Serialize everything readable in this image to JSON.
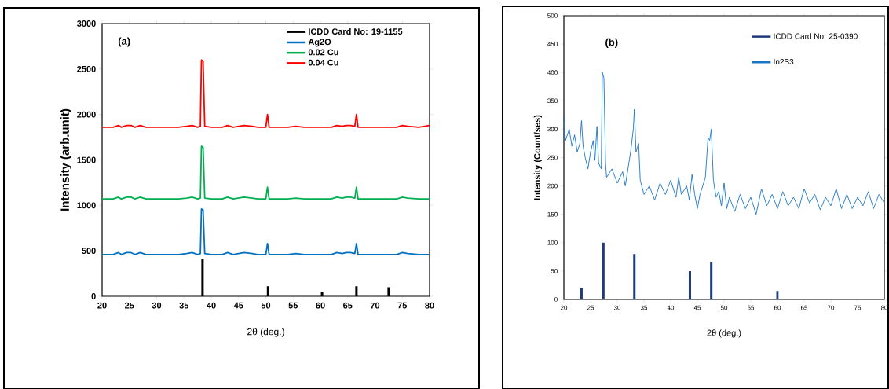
{
  "chart_data": [
    {
      "type": "line",
      "xlabel": "2θ (deg.)",
      "ylabel": "Intensity (arb.unit)",
      "xlim": [
        20,
        80
      ],
      "ylim": [
        0,
        3000
      ],
      "xticks": [
        20,
        25,
        30,
        35,
        40,
        45,
        50,
        55,
        60,
        65,
        70,
        75,
        80
      ],
      "yticks": [
        0,
        500,
        1000,
        1500,
        2000,
        2500,
        3000
      ],
      "legend": "top right",
      "annotations": [
        "(a)"
      ],
      "series": [
        {
          "name": "ICDD Card No: 19-1155",
          "type": "bar",
          "color": "#000000",
          "x": [
            38.4,
            50.4,
            60.3,
            66.6,
            72.5
          ],
          "values": [
            410,
            110,
            50,
            110,
            100
          ]
        },
        {
          "name": "Ag2O",
          "color": "#0070c0",
          "x": [
            20,
            21,
            22,
            23,
            23.5,
            24.5,
            25.3,
            26,
            27,
            28,
            30,
            32,
            34,
            35.5,
            36.5,
            37.5,
            38.0,
            38.2,
            38.5,
            38.8,
            40,
            42,
            43,
            44,
            46,
            47.5,
            48.5,
            50.0,
            50.3,
            50.6,
            52,
            54,
            55.5,
            57,
            60,
            62,
            63,
            64,
            64.7,
            65.5,
            66.3,
            66.6,
            66.9,
            68,
            70,
            72,
            74,
            75,
            76,
            78,
            80
          ],
          "values": [
            460,
            460,
            460,
            480,
            460,
            480,
            480,
            460,
            480,
            460,
            460,
            460,
            460,
            470,
            480,
            460,
            470,
            960,
            950,
            470,
            460,
            460,
            480,
            460,
            480,
            470,
            460,
            460,
            580,
            460,
            460,
            460,
            470,
            460,
            460,
            460,
            480,
            470,
            480,
            480,
            470,
            580,
            460,
            460,
            460,
            460,
            460,
            480,
            470,
            460,
            460
          ]
        },
        {
          "name": "0.02 Cu",
          "color": "#00b050",
          "x": [
            20,
            21,
            22,
            23,
            23.5,
            24.5,
            25.3,
            26,
            27,
            28,
            30,
            32,
            34,
            35.5,
            36.5,
            37.5,
            38.0,
            38.2,
            38.5,
            38.8,
            40,
            42,
            43,
            44,
            46,
            47.5,
            48.5,
            50.0,
            50.3,
            50.6,
            52,
            54,
            55.5,
            57,
            60,
            62,
            63,
            64,
            64.7,
            65.5,
            66.3,
            66.6,
            66.9,
            68,
            70,
            72,
            74,
            75,
            76,
            78,
            80
          ],
          "values": [
            1070,
            1070,
            1070,
            1090,
            1070,
            1090,
            1090,
            1070,
            1090,
            1070,
            1070,
            1070,
            1070,
            1080,
            1090,
            1070,
            1080,
            1650,
            1640,
            1080,
            1070,
            1070,
            1090,
            1070,
            1090,
            1080,
            1070,
            1070,
            1200,
            1070,
            1070,
            1070,
            1080,
            1070,
            1070,
            1070,
            1090,
            1080,
            1090,
            1090,
            1080,
            1200,
            1070,
            1070,
            1070,
            1070,
            1070,
            1090,
            1080,
            1070,
            1070
          ]
        },
        {
          "name": "0.04 Cu",
          "color": "#ff0000",
          "x": [
            20,
            21,
            22,
            23,
            23.5,
            24.5,
            25.3,
            26,
            27,
            28,
            30,
            32,
            34,
            35.5,
            36.5,
            37.5,
            38.0,
            38.2,
            38.5,
            38.8,
            40,
            42,
            43,
            44,
            46,
            47.5,
            48.5,
            50.0,
            50.3,
            50.6,
            52,
            54,
            55.5,
            57,
            60,
            62,
            63,
            64,
            64.7,
            65.5,
            66.3,
            66.6,
            66.9,
            68,
            70,
            72,
            74,
            75,
            76,
            78,
            80
          ],
          "values": [
            1860,
            1860,
            1860,
            1880,
            1860,
            1880,
            1880,
            1860,
            1880,
            1860,
            1860,
            1860,
            1860,
            1870,
            1880,
            1860,
            1870,
            2600,
            2590,
            1870,
            1860,
            1860,
            1880,
            1860,
            1880,
            1870,
            1860,
            1860,
            2000,
            1860,
            1860,
            1860,
            1870,
            1860,
            1860,
            1860,
            1880,
            1870,
            1880,
            1880,
            1870,
            2000,
            1860,
            1860,
            1860,
            1860,
            1860,
            1880,
            1870,
            1860,
            1880
          ]
        }
      ]
    },
    {
      "type": "line",
      "xlabel": "2θ (deg.)",
      "ylabel": "Intensity (Count/ses)",
      "xlim": [
        20,
        80
      ],
      "ylim": [
        0,
        500
      ],
      "xticks": [
        20,
        25,
        30,
        35,
        40,
        45,
        50,
        55,
        60,
        65,
        70,
        75,
        80
      ],
      "yticks": [
        0,
        50,
        100,
        150,
        200,
        250,
        300,
        350,
        400,
        450,
        500
      ],
      "legend": "top right",
      "annotations": [
        "(b)"
      ],
      "series": [
        {
          "name": "ICDD Card No: 25-0390",
          "type": "bar",
          "color": "#1f3a7a",
          "x": [
            23.3,
            27.4,
            33.2,
            43.6,
            47.6,
            60.0
          ],
          "values": [
            20,
            100,
            80,
            50,
            65,
            15
          ]
        },
        {
          "name": "In2S3",
          "color": "#1a75c4",
          "x": [
            20,
            20.3,
            21,
            21.5,
            22,
            22.5,
            23,
            23.3,
            23.6,
            24,
            24.5,
            25,
            25.5,
            25.8,
            26.2,
            26.5,
            27,
            27.2,
            27.5,
            27.8,
            28,
            29,
            30,
            31,
            31.5,
            32,
            32.5,
            33,
            33.2,
            33.5,
            34,
            34.3,
            35,
            36,
            37,
            38,
            39,
            40,
            41,
            41.5,
            42,
            43,
            43.5,
            44,
            44.5,
            45,
            45.5,
            46,
            46.5,
            47,
            47.3,
            47.6,
            48,
            48.5,
            49,
            49.5,
            50,
            50.5,
            51,
            52,
            53,
            54,
            55,
            56,
            57,
            58,
            59,
            60,
            61,
            62,
            63,
            64,
            65,
            66,
            67,
            68,
            69,
            70,
            71,
            72,
            73,
            74,
            75,
            76,
            77,
            78,
            79,
            80
          ],
          "values": [
            325,
            280,
            300,
            270,
            290,
            260,
            275,
            315,
            270,
            250,
            230,
            260,
            280,
            245,
            305,
            240,
            230,
            400,
            390,
            240,
            215,
            230,
            205,
            225,
            200,
            230,
            260,
            300,
            335,
            260,
            275,
            210,
            185,
            200,
            175,
            205,
            185,
            210,
            180,
            215,
            185,
            200,
            175,
            220,
            185,
            160,
            185,
            200,
            215,
            285,
            280,
            300,
            210,
            180,
            190,
            165,
            205,
            160,
            180,
            155,
            185,
            160,
            180,
            150,
            195,
            165,
            185,
            160,
            190,
            165,
            180,
            160,
            195,
            170,
            185,
            158,
            180,
            165,
            195,
            160,
            185,
            160,
            180,
            165,
            190,
            160,
            185,
            170
          ]
        }
      ]
    }
  ]
}
